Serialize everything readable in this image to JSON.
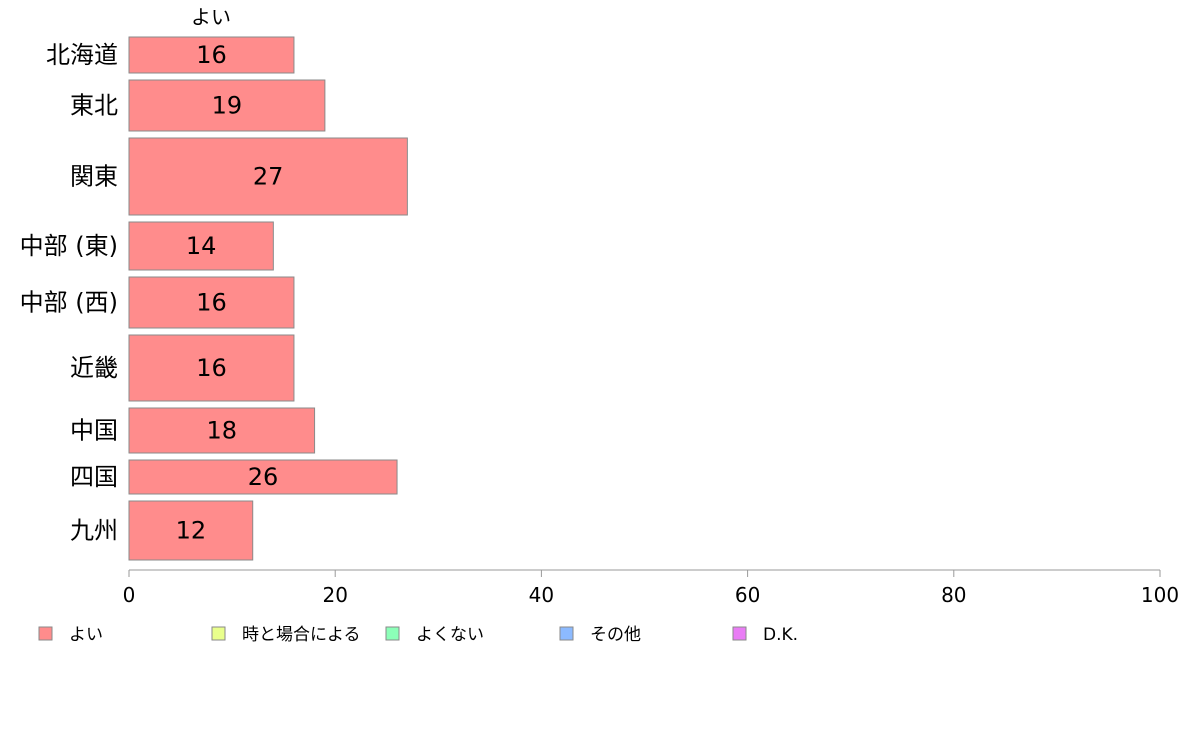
{
  "chart_data": {
    "type": "bar",
    "orientation": "horizontal",
    "stacked": true,
    "column_header": "よい",
    "categories": [
      "北海道",
      "東北",
      "関東",
      "中部 (東)",
      "中部 (西)",
      "近畿",
      "中国",
      "四国",
      "九州"
    ],
    "series": [
      {
        "name": "よい",
        "color": "#ff8c8c",
        "values": [
          16,
          19,
          27,
          14,
          16,
          16,
          18,
          26,
          12
        ],
        "labels": [
          "16",
          "19",
          "27",
          "14",
          "16",
          "16",
          "18",
          "26",
          "12"
        ]
      }
    ],
    "xlim": [
      0,
      100
    ],
    "xticks": [
      0,
      20,
      40,
      60,
      80,
      100
    ],
    "xtick_labels": [
      "0",
      "20",
      "40",
      "60",
      "80",
      "100"
    ],
    "grid": false,
    "legend_position": "bottom",
    "legend": [
      {
        "label": "よい",
        "color": "#ff8c8c"
      },
      {
        "label": "時と場合による",
        "color": "#e9ff8c"
      },
      {
        "label": "よくない",
        "color": "#8cffb8"
      },
      {
        "label": "その他",
        "color": "#8cbaff"
      },
      {
        "label": "D.K.",
        "color": "#e97cf5"
      }
    ],
    "title": "",
    "xlabel": "",
    "ylabel": ""
  }
}
